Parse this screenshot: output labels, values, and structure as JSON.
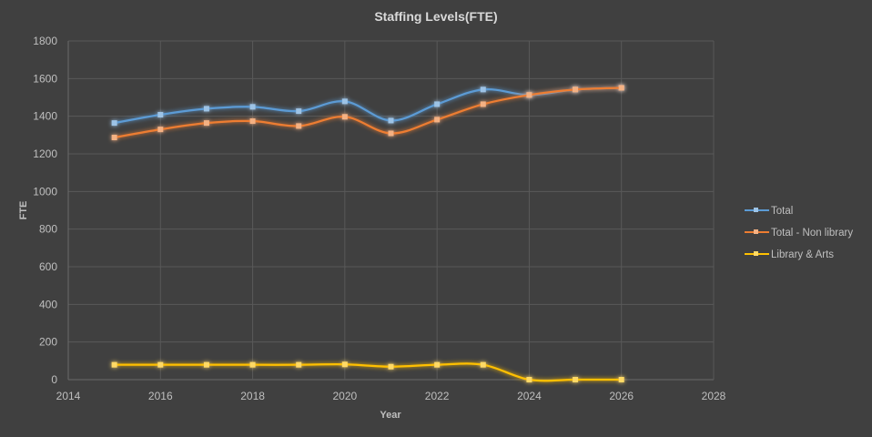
{
  "chart_data": {
    "type": "line",
    "title": "Staffing Levels(FTE)",
    "xlabel": "Year",
    "ylabel": "FTE",
    "xlim": [
      2014,
      2028
    ],
    "ylim": [
      0,
      1800
    ],
    "x_ticks": [
      2014,
      2016,
      2018,
      2020,
      2022,
      2024,
      2026,
      2028
    ],
    "y_ticks": [
      0,
      200,
      400,
      600,
      800,
      1000,
      1200,
      1400,
      1600,
      1800
    ],
    "grid": true,
    "smooth": true,
    "legend_position": "right",
    "x": [
      2015,
      2016,
      2017,
      2018,
      2019,
      2020,
      2021,
      2022,
      2023,
      2024,
      2025,
      2026
    ],
    "series": [
      {
        "name": "Total",
        "color": "#5b9bd5",
        "marker_color": "#9dc3e6",
        "values": [
          1364,
          1408,
          1440,
          1450,
          1427,
          1479,
          1377,
          1464,
          1542,
          1513,
          1542,
          1551
        ]
      },
      {
        "name": "Total - Non library",
        "color": "#ed7d31",
        "marker_color": "#f4b183",
        "values": [
          1287,
          1330,
          1364,
          1374,
          1348,
          1397,
          1309,
          1382,
          1464,
          1513,
          1542,
          1551
        ]
      },
      {
        "name": "Library & Arts",
        "color": "#ffc000",
        "marker_color": "#ffd966",
        "values": [
          79,
          79,
          79,
          79,
          79,
          81,
          69,
          79,
          79,
          0,
          0,
          0
        ]
      }
    ]
  }
}
